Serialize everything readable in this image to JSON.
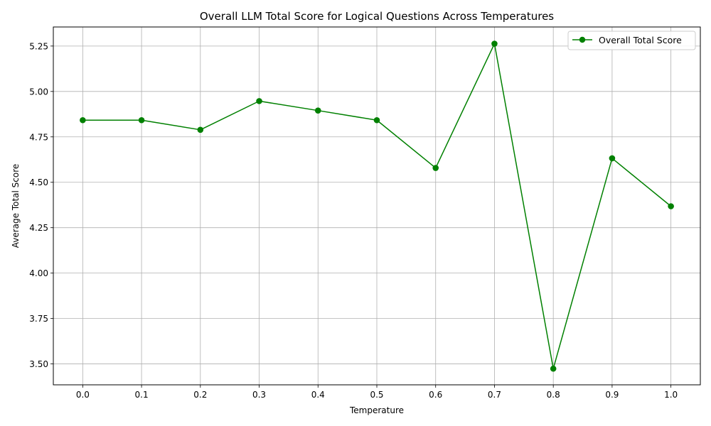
{
  "chart_data": {
    "type": "line",
    "title": "Overall LLM Total Score for  Logical Questions Across Temperatures",
    "xlabel": "Temperature",
    "ylabel": "Average Total Score",
    "x": [
      0.0,
      0.1,
      0.2,
      0.3,
      0.4,
      0.5,
      0.6,
      0.7,
      0.8,
      0.9,
      1.0
    ],
    "x_tick_labels": [
      "0.0",
      "0.1",
      "0.2",
      "0.3",
      "0.4",
      "0.5",
      "0.6",
      "0.7",
      "0.8",
      "0.9",
      "1.0"
    ],
    "y_ticks": [
      3.5,
      3.75,
      4.0,
      4.25,
      4.5,
      4.75,
      5.0,
      5.25
    ],
    "y_tick_labels": [
      "3.50",
      "3.75",
      "4.00",
      "4.25",
      "4.50",
      "4.75",
      "5.00",
      "5.25"
    ],
    "xlim": [
      -0.05,
      1.05
    ],
    "ylim": [
      3.385,
      5.355
    ],
    "grid": true,
    "legend_position": "upper-right",
    "series": [
      {
        "name": "Overall Total Score",
        "color": "#008000",
        "marker": "circle",
        "values": [
          4.842,
          4.842,
          4.789,
          4.947,
          4.895,
          4.842,
          4.579,
          5.263,
          3.474,
          4.632,
          4.368
        ]
      }
    ]
  }
}
